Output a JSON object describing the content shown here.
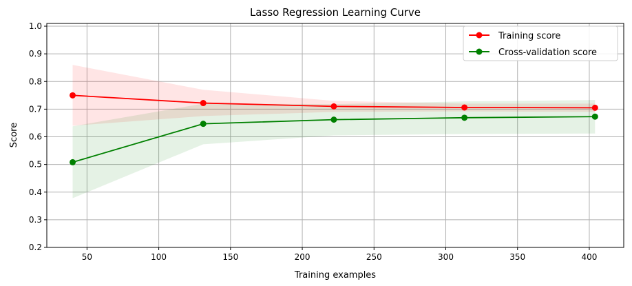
{
  "chart_data": {
    "type": "line",
    "title": "Lasso Regression Learning Curve",
    "xlabel": "Training examples",
    "ylabel": "Score",
    "xlim": [
      22,
      424
    ],
    "ylim": [
      0.2,
      1.01
    ],
    "xticks": [
      50,
      100,
      150,
      200,
      250,
      300,
      350,
      400
    ],
    "yticks": [
      0.2,
      0.3,
      0.4,
      0.5,
      0.6,
      0.7,
      0.8,
      0.9,
      1.0
    ],
    "grid": true,
    "legend_position": "top-right",
    "x": [
      40,
      131,
      222,
      313,
      404
    ],
    "series": [
      {
        "name": "Training score",
        "color": "#ff0000",
        "band_color": "#ff0000",
        "values": [
          0.75,
          0.722,
          0.71,
          0.706,
          0.705
        ],
        "band_lower": [
          0.64,
          0.675,
          0.69,
          0.692,
          0.69
        ],
        "band_upper": [
          0.86,
          0.77,
          0.73,
          0.72,
          0.72
        ]
      },
      {
        "name": "Cross-validation score",
        "color": "#008000",
        "band_color": "#008000",
        "values": [
          0.508,
          0.647,
          0.662,
          0.669,
          0.673
        ],
        "band_lower": [
          0.378,
          0.573,
          0.605,
          0.61,
          0.612
        ],
        "band_upper": [
          0.638,
          0.72,
          0.718,
          0.728,
          0.733
        ]
      }
    ]
  }
}
